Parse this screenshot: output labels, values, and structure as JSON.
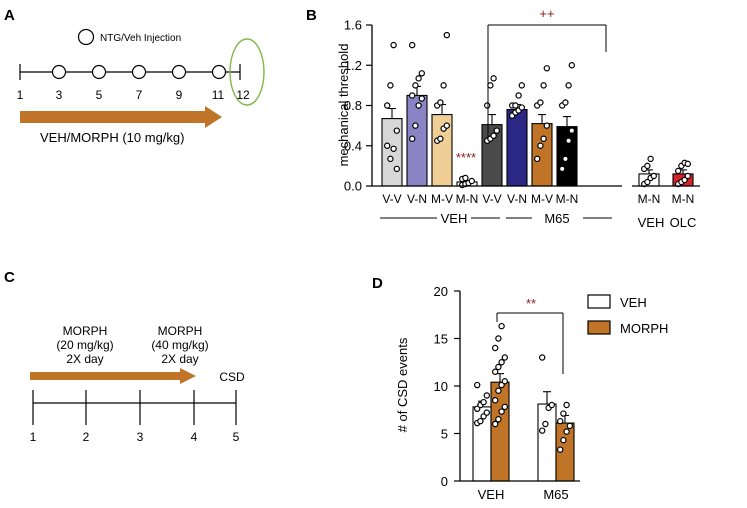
{
  "panels": {
    "a": "A",
    "b": "B",
    "c": "C",
    "d": "D"
  },
  "panel_a": {
    "legend_label": "NTG/Veh Injection",
    "day_labels": [
      "1",
      "3",
      "5",
      "7",
      "9",
      "11",
      "12"
    ],
    "arrow_label": "VEH/MORPH (10 mg/kg)",
    "colors": {
      "arrow": "#c07428",
      "highlight": "#7dbb45"
    }
  },
  "panel_c": {
    "phase1": [
      "MORPH",
      "(20 mg/kg)",
      "2X day"
    ],
    "phase2": [
      "MORPH",
      "(40 mg/kg)",
      "2X day"
    ],
    "end_label": "CSD",
    "day_labels": [
      "1",
      "2",
      "3",
      "4",
      "5"
    ]
  },
  "chart_data": [
    {
      "type": "bar",
      "panel": "B",
      "ylabel": "mechanical threshold",
      "ylim": [
        0,
        1.6
      ],
      "yticks": [
        "0.0",
        "0.4",
        "0.8",
        "1.2",
        "1.6"
      ],
      "categories": [
        "V-V",
        "V-N",
        "M-V",
        "M-N",
        "V-V",
        "V-N",
        "M-V",
        "M-N",
        "M-N",
        "M-N"
      ],
      "values": [
        0.67,
        0.9,
        0.71,
        0.04,
        0.61,
        0.76,
        0.62,
        0.59,
        0.12,
        0.12
      ],
      "errors": [
        0.1,
        0.09,
        0.1,
        0.01,
        0.1,
        0.05,
        0.09,
        0.1,
        0.04,
        0.04
      ],
      "colors": [
        "#d7d7d7",
        "#8b84c4",
        "#f0cf96",
        "#ffffff",
        "#4a4a4a",
        "#2b2785",
        "#c07428",
        "#000000",
        "#ffffff",
        "#d6232b"
      ],
      "points": [
        [
          0.4,
          0.27,
          0.37,
          0.55,
          0.8,
          1.0,
          1.4,
          0.17
        ],
        [
          0.47,
          0.6,
          0.8,
          0.87,
          0.9,
          1.0,
          1.07,
          1.12,
          1.4
        ],
        [
          0.45,
          0.47,
          0.57,
          0.6,
          0.8,
          0.83,
          1.0,
          1.5
        ],
        [
          0.01,
          0.02,
          0.03,
          0.05,
          0.07,
          0.08
        ],
        [
          0.45,
          0.47,
          0.5,
          0.55,
          0.8,
          1.0,
          1.07
        ],
        [
          0.7,
          0.73,
          0.75,
          0.78,
          0.8,
          0.8,
          0.9,
          1.0
        ],
        [
          0.27,
          0.4,
          0.47,
          0.6,
          0.8,
          0.83,
          1.0,
          1.17
        ],
        [
          0.17,
          0.27,
          0.45,
          0.55,
          0.8,
          0.83,
          1.0,
          1.2
        ],
        [
          0.02,
          0.04,
          0.08,
          0.1,
          0.17,
          0.2,
          0.27
        ],
        [
          0.02,
          0.04,
          0.06,
          0.1,
          0.15,
          0.2,
          0.23,
          0.22
        ]
      ],
      "group_labels": [
        "VEH",
        "M65",
        "VEH",
        "OLC"
      ],
      "annotations": [
        "****",
        "++"
      ]
    },
    {
      "type": "bar",
      "panel": "D",
      "ylabel": "# of CSD events",
      "ylim": [
        0,
        20
      ],
      "yticks": [
        "0",
        "5",
        "10",
        "15",
        "20"
      ],
      "categories": [
        "VEH",
        "M65"
      ],
      "series": [
        {
          "name": "VEH",
          "color": "#ffffff",
          "values": [
            7.8,
            8.1
          ],
          "errors": [
            0.6,
            1.3
          ],
          "points": [
            [
              6.1,
              6.3,
              6.8,
              7.2,
              7.6,
              8.0,
              8.3,
              9.0,
              10.1
            ],
            [
              5.3,
              6.0,
              7.7,
              8.0,
              13.0
            ]
          ]
        },
        {
          "name": "MORPH",
          "color": "#c07428",
          "values": [
            10.4,
            6.1
          ],
          "errors": [
            0.9,
            0.8
          ],
          "points": [
            [
              6.0,
              6.5,
              7.3,
              7.8,
              8.5,
              9.5,
              10.1,
              10.5,
              11.5,
              12.0,
              12.5,
              13.0,
              14.0,
              15.0,
              16.3
            ],
            [
              3.3,
              4.3,
              5.2,
              5.8,
              6.3,
              7.1,
              8.0
            ]
          ]
        }
      ],
      "annotations": [
        "**"
      ]
    }
  ]
}
